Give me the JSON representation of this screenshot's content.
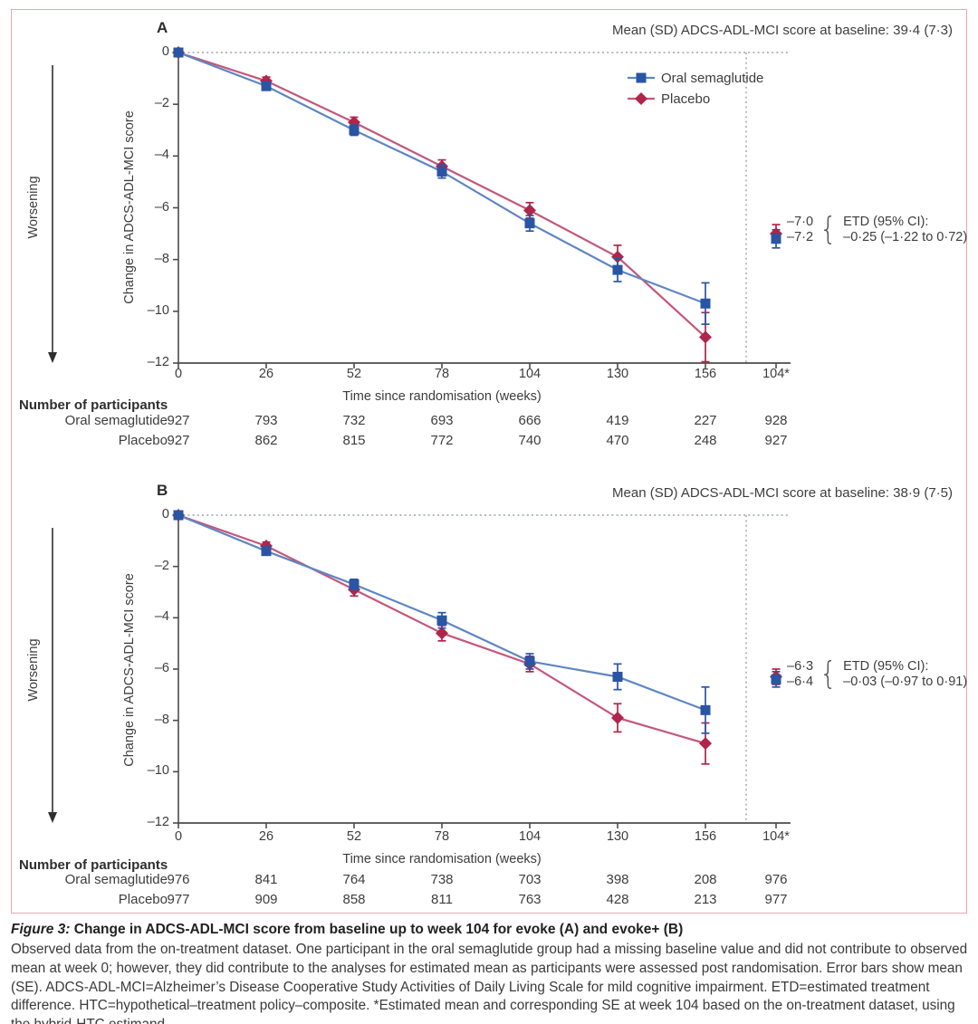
{
  "colors": {
    "border": "#e8a8b2",
    "blue_marker": "#2a55a4",
    "blue_line": "#5e86c3",
    "red_marker": "#b0254a",
    "red_line": "#c4577a",
    "guide": "#97a3ac",
    "axis": "#4c4c4c",
    "arrow": "#2f2f2f"
  },
  "chart_data": [
    {
      "type": "line",
      "panel_label": "A",
      "title": "Mean (SD) ADCS-ADL-MCI score at baseline: 39·4 (7·3)",
      "xlabel": "Time since randomisation (weeks)",
      "ylabel": "Change in ADCS-ADL-MCI score",
      "direction_label": "Worsening",
      "x": [
        0,
        26,
        52,
        78,
        104,
        130,
        156
      ],
      "xtick_extra": "104*",
      "yticks": [
        0,
        -2,
        -4,
        -6,
        -8,
        -10,
        -12
      ],
      "ylim": [
        -12,
        0
      ],
      "legend_position": "top-right",
      "series": [
        {
          "name": "Oral semaglutide",
          "marker": "square",
          "values": [
            0,
            -1.3,
            -3.0,
            -4.6,
            -6.6,
            -8.4,
            -9.7
          ],
          "se": [
            0,
            0.15,
            0.2,
            0.25,
            0.3,
            0.45,
            0.8
          ],
          "estimated_week104": {
            "value": -7.2,
            "se": 0.35
          }
        },
        {
          "name": "Placebo",
          "marker": "diamond",
          "values": [
            0,
            -1.1,
            -2.7,
            -4.4,
            -6.1,
            -7.9,
            -11.0
          ],
          "se": [
            0,
            0.15,
            0.2,
            0.25,
            0.3,
            0.45,
            0.95
          ],
          "estimated_week104": {
            "value": -7.0,
            "se": 0.35
          }
        }
      ],
      "etd": {
        "values": [
          "–7·0",
          "–7·2"
        ],
        "label": "ETD (95% CI):",
        "value": "–0·25 (–1·22 to 0·72)"
      },
      "participants": {
        "header": "Number of participants",
        "rows": [
          {
            "label": "Oral semaglutide",
            "counts": [
              "927",
              "793",
              "732",
              "693",
              "666",
              "419",
              "227",
              "928"
            ]
          },
          {
            "label": "Placebo",
            "counts": [
              "927",
              "862",
              "815",
              "772",
              "740",
              "470",
              "248",
              "927"
            ]
          }
        ]
      }
    },
    {
      "type": "line",
      "panel_label": "B",
      "title": "Mean (SD) ADCS-ADL-MCI score at baseline: 38·9 (7·5)",
      "xlabel": "Time since randomisation (weeks)",
      "ylabel": "Change in ADCS-ADL-MCI score",
      "direction_label": "Worsening",
      "x": [
        0,
        26,
        52,
        78,
        104,
        130,
        156
      ],
      "xtick_extra": "104*",
      "yticks": [
        0,
        -2,
        -4,
        -6,
        -8,
        -10,
        -12
      ],
      "ylim": [
        -12,
        0
      ],
      "series": [
        {
          "name": "Oral semaglutide",
          "marker": "square",
          "values": [
            0,
            -1.4,
            -2.7,
            -4.1,
            -5.7,
            -6.3,
            -7.6
          ],
          "se": [
            0,
            0.15,
            0.2,
            0.3,
            0.3,
            0.5,
            0.9
          ],
          "estimated_week104": {
            "value": -6.4,
            "se": 0.3
          }
        },
        {
          "name": "Placebo",
          "marker": "diamond",
          "values": [
            0,
            -1.2,
            -2.9,
            -4.6,
            -5.8,
            -7.9,
            -8.9
          ],
          "se": [
            0,
            0.15,
            0.25,
            0.3,
            0.3,
            0.55,
            0.8
          ],
          "estimated_week104": {
            "value": -6.3,
            "se": 0.3
          }
        }
      ],
      "etd": {
        "values": [
          "–6·3",
          "–6·4"
        ],
        "label": "ETD (95% CI):",
        "value": "–0·03 (–0·97 to 0·91)"
      },
      "participants": {
        "header": "Number of participants",
        "rows": [
          {
            "label": "Oral semaglutide",
            "counts": [
              "976",
              "841",
              "764",
              "738",
              "703",
              "398",
              "208",
              "976"
            ]
          },
          {
            "label": "Placebo",
            "counts": [
              "977",
              "909",
              "858",
              "811",
              "763",
              "428",
              "213",
              "977"
            ]
          }
        ]
      }
    }
  ],
  "caption": {
    "title_lead": "Figure 3:",
    "title_rest": " Change in ADCS-ADL-MCI score from baseline up to week 104 for evoke (A) and evoke+ (B)",
    "body": "Observed data from the on-treatment dataset. One participant in the oral semaglutide group had a missing baseline value and did not contribute to observed mean at week 0; however, they did contribute to the analyses for estimated mean as participants were assessed post randomisation. Error bars show mean (SE). ADCS-ADL-MCI=Alzheimer’s Disease Cooperative Study Activities of Daily Living Scale for mild cognitive impairment. ETD=estimated treatment difference. HTC=hypothetical–treatment policy–composite. *Estimated mean and corresponding SE at week 104 based on the on-treatment dataset, using the hybrid-HTC estimand."
  }
}
